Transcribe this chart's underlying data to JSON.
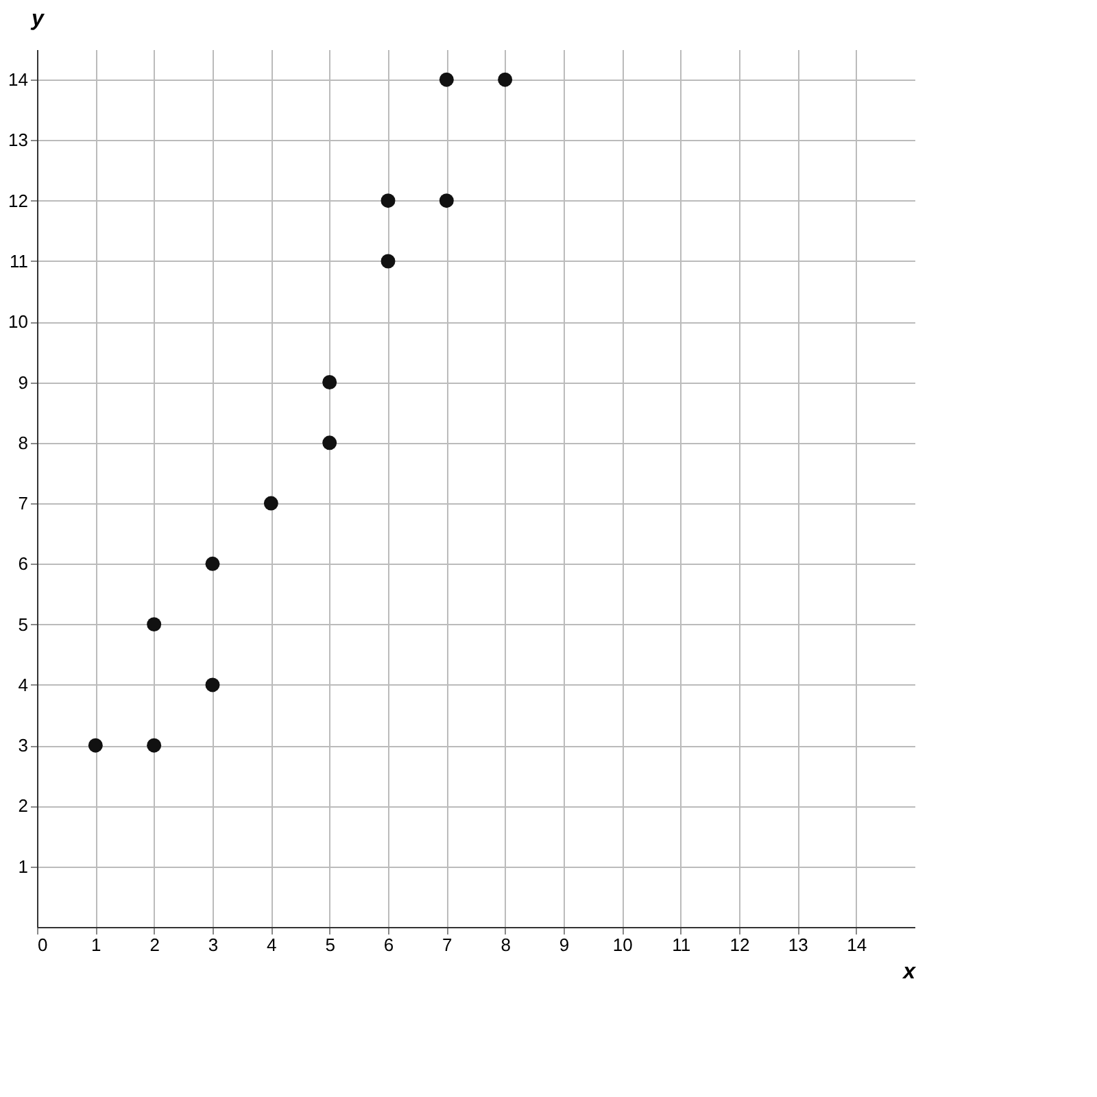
{
  "chart_data": {
    "type": "scatter",
    "xlabel": "x",
    "ylabel": "y",
    "x": [
      1,
      2,
      2,
      3,
      3,
      4,
      5,
      5,
      6,
      6,
      7,
      7,
      8
    ],
    "series": [
      {
        "color": "#111111",
        "values": [
          3,
          3,
          5,
          4,
          6,
          7,
          8,
          9,
          11,
          12,
          12,
          14,
          14
        ]
      }
    ],
    "xlim": [
      0,
      15
    ],
    "ylim": [
      0,
      14.5
    ],
    "xticks": [
      0,
      1,
      2,
      3,
      4,
      5,
      6,
      7,
      8,
      9,
      10,
      11,
      12,
      13,
      14
    ],
    "yticks": [
      1,
      2,
      3,
      4,
      5,
      6,
      7,
      8,
      9,
      10,
      11,
      12,
      13,
      14
    ],
    "grid": true,
    "marker": "circle"
  }
}
